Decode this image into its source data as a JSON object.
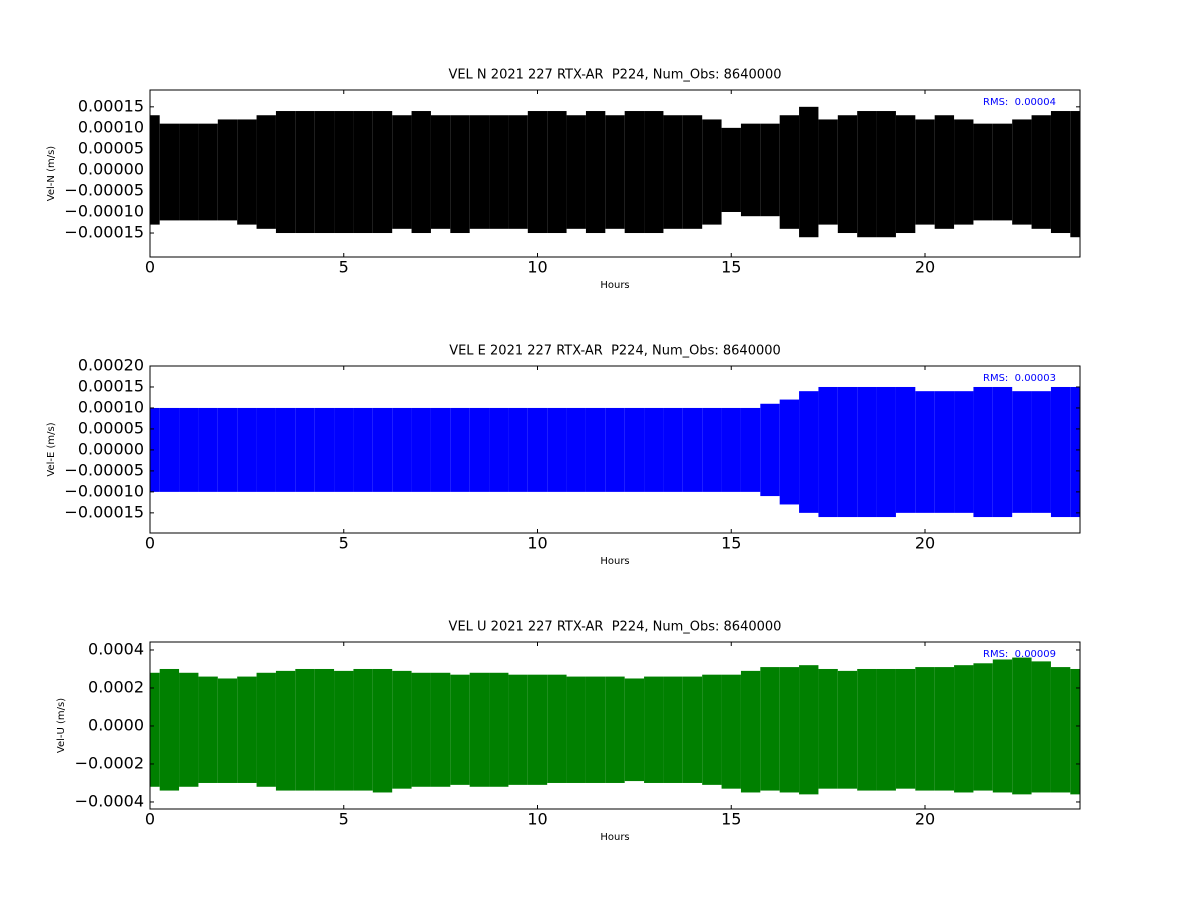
{
  "chart_data": [
    {
      "type": "range",
      "title": "VEL N 2021 227 RTX-AR  P224, Num_Obs: 8640000",
      "xlabel": "Hours",
      "ylabel": "Vel-N (m/s)",
      "annotation": "RMS:  0.00004",
      "annotation_color": "#0000ff",
      "color": "#000000",
      "x": [
        0,
        0.5,
        1,
        1.5,
        2,
        2.5,
        3,
        3.5,
        4,
        4.5,
        5,
        5.5,
        6,
        6.5,
        7,
        7.5,
        8,
        8.5,
        9,
        9.5,
        10,
        10.5,
        11,
        11.5,
        12,
        12.5,
        13,
        13.5,
        14,
        14.5,
        15,
        15.5,
        16,
        16.5,
        17,
        17.5,
        18,
        18.5,
        19,
        19.5,
        20,
        20.5,
        21,
        21.5,
        22,
        22.5,
        23,
        23.5,
        24
      ],
      "high": [
        0.00013,
        0.00011,
        0.00011,
        0.00011,
        0.00012,
        0.00012,
        0.00013,
        0.00014,
        0.00014,
        0.00014,
        0.00014,
        0.00014,
        0.00014,
        0.00013,
        0.00014,
        0.00013,
        0.00013,
        0.00013,
        0.00013,
        0.00013,
        0.00014,
        0.00014,
        0.00013,
        0.00014,
        0.00013,
        0.00014,
        0.00014,
        0.00013,
        0.00013,
        0.00012,
        0.0001,
        0.00011,
        0.00011,
        0.00013,
        0.00015,
        0.00012,
        0.00013,
        0.00014,
        0.00014,
        0.00013,
        0.00012,
        0.00013,
        0.00012,
        0.00011,
        0.00011,
        0.00012,
        0.00013,
        0.00014,
        0.00014
      ],
      "low": [
        -0.00013,
        -0.00012,
        -0.00012,
        -0.00012,
        -0.00012,
        -0.00013,
        -0.00014,
        -0.00015,
        -0.00015,
        -0.00015,
        -0.00015,
        -0.00015,
        -0.00015,
        -0.00014,
        -0.00015,
        -0.00014,
        -0.00015,
        -0.00014,
        -0.00014,
        -0.00014,
        -0.00015,
        -0.00015,
        -0.00014,
        -0.00015,
        -0.00014,
        -0.00015,
        -0.00015,
        -0.00014,
        -0.00014,
        -0.00013,
        -0.0001,
        -0.00011,
        -0.00011,
        -0.00014,
        -0.00016,
        -0.00013,
        -0.00015,
        -0.00016,
        -0.00016,
        -0.00015,
        -0.00013,
        -0.00014,
        -0.00013,
        -0.00012,
        -0.00012,
        -0.00013,
        -0.00014,
        -0.00015,
        -0.00016
      ],
      "xlim": [
        0,
        24
      ],
      "ylim": [
        -0.000207,
        0.00019
      ],
      "xticks": [
        0,
        5,
        10,
        15,
        20
      ],
      "yticks": [
        {
          "value": -0.00015,
          "label": "−0.00015"
        },
        {
          "value": -0.0001,
          "label": "−0.00010"
        },
        {
          "value": -5e-05,
          "label": "−0.00005"
        },
        {
          "value": 0,
          "label": "0.00000"
        },
        {
          "value": 5e-05,
          "label": "0.00005"
        },
        {
          "value": 0.0001,
          "label": "0.00010"
        },
        {
          "value": 0.00015,
          "label": "0.00015"
        }
      ]
    },
    {
      "type": "range",
      "title": "VEL E 2021 227 RTX-AR  P224, Num_Obs: 8640000",
      "xlabel": "Hours",
      "ylabel": "Vel-E (m/s)",
      "annotation": "RMS:  0.00003",
      "annotation_color": "#0000ff",
      "color": "#0000ff",
      "x": [
        0,
        0.5,
        1,
        1.5,
        2,
        2.5,
        3,
        3.5,
        4,
        4.5,
        5,
        5.5,
        6,
        6.5,
        7,
        7.5,
        8,
        8.5,
        9,
        9.5,
        10,
        10.5,
        11,
        11.5,
        12,
        12.5,
        13,
        13.5,
        14,
        14.5,
        15,
        15.5,
        16,
        16.5,
        17,
        17.5,
        18,
        18.5,
        19,
        19.5,
        20,
        20.5,
        21,
        21.5,
        22,
        22.5,
        23,
        23.5,
        24
      ],
      "high": [
        0.0001,
        0.0001,
        0.0001,
        0.0001,
        0.0001,
        0.0001,
        0.0001,
        0.0001,
        0.0001,
        0.0001,
        0.0001,
        0.0001,
        0.0001,
        0.0001,
        0.0001,
        0.0001,
        0.0001,
        0.0001,
        0.0001,
        0.0001,
        0.0001,
        0.0001,
        0.0001,
        0.0001,
        0.0001,
        0.0001,
        0.0001,
        0.0001,
        0.0001,
        0.0001,
        0.0001,
        0.0001,
        0.00011,
        0.00012,
        0.00014,
        0.00015,
        0.00015,
        0.00015,
        0.00015,
        0.00015,
        0.00014,
        0.00014,
        0.00014,
        0.00015,
        0.00015,
        0.00014,
        0.00014,
        0.00015,
        0.00015
      ],
      "low": [
        -0.0001,
        -0.0001,
        -0.0001,
        -0.0001,
        -0.0001,
        -0.0001,
        -0.0001,
        -0.0001,
        -0.0001,
        -0.0001,
        -0.0001,
        -0.0001,
        -0.0001,
        -0.0001,
        -0.0001,
        -0.0001,
        -0.0001,
        -0.0001,
        -0.0001,
        -0.0001,
        -0.0001,
        -0.0001,
        -0.0001,
        -0.0001,
        -0.0001,
        -0.0001,
        -0.0001,
        -0.0001,
        -0.0001,
        -0.0001,
        -0.0001,
        -0.0001,
        -0.00011,
        -0.00013,
        -0.00015,
        -0.00016,
        -0.00016,
        -0.00016,
        -0.00016,
        -0.00015,
        -0.00015,
        -0.00015,
        -0.00015,
        -0.00016,
        -0.00016,
        -0.00015,
        -0.00015,
        -0.00016,
        -0.00016
      ],
      "xlim": [
        0,
        24
      ],
      "ylim": [
        -0.000198,
        0.0002
      ],
      "xticks": [
        0,
        5,
        10,
        15,
        20
      ],
      "yticks": [
        {
          "value": -0.00015,
          "label": "−0.00015"
        },
        {
          "value": -0.0001,
          "label": "−0.00010"
        },
        {
          "value": -5e-05,
          "label": "−0.00005"
        },
        {
          "value": 0,
          "label": "0.00000"
        },
        {
          "value": 5e-05,
          "label": "0.00005"
        },
        {
          "value": 0.0001,
          "label": "0.00010"
        },
        {
          "value": 0.00015,
          "label": "0.00015"
        },
        {
          "value": 0.0002,
          "label": "0.00020"
        }
      ]
    },
    {
      "type": "range",
      "title": "VEL U 2021 227 RTX-AR  P224, Num_Obs: 8640000",
      "xlabel": "Hours",
      "ylabel": "Vel-U (m/s)",
      "annotation": "RMS:  0.00009",
      "annotation_color": "#0000ff",
      "color": "#008000",
      "x": [
        0,
        0.5,
        1,
        1.5,
        2,
        2.5,
        3,
        3.5,
        4,
        4.5,
        5,
        5.5,
        6,
        6.5,
        7,
        7.5,
        8,
        8.5,
        9,
        9.5,
        10,
        10.5,
        11,
        11.5,
        12,
        12.5,
        13,
        13.5,
        14,
        14.5,
        15,
        15.5,
        16,
        16.5,
        17,
        17.5,
        18,
        18.5,
        19,
        19.5,
        20,
        20.5,
        21,
        21.5,
        22,
        22.5,
        23,
        23.5,
        24
      ],
      "high": [
        0.00028,
        0.0003,
        0.00028,
        0.00026,
        0.00025,
        0.00026,
        0.00028,
        0.00029,
        0.0003,
        0.0003,
        0.00029,
        0.0003,
        0.0003,
        0.00029,
        0.00028,
        0.00028,
        0.00027,
        0.00028,
        0.00028,
        0.00027,
        0.00027,
        0.00027,
        0.00026,
        0.00026,
        0.00026,
        0.00025,
        0.00026,
        0.00026,
        0.00026,
        0.00027,
        0.00027,
        0.00029,
        0.00031,
        0.00031,
        0.00032,
        0.0003,
        0.00029,
        0.0003,
        0.0003,
        0.0003,
        0.00031,
        0.00031,
        0.00032,
        0.00033,
        0.00035,
        0.00036,
        0.00034,
        0.00031,
        0.0003
      ],
      "low": [
        -0.00032,
        -0.00034,
        -0.00032,
        -0.0003,
        -0.0003,
        -0.0003,
        -0.00032,
        -0.00034,
        -0.00034,
        -0.00034,
        -0.00034,
        -0.00034,
        -0.00035,
        -0.00033,
        -0.00032,
        -0.00032,
        -0.00031,
        -0.00032,
        -0.00032,
        -0.00031,
        -0.00031,
        -0.0003,
        -0.0003,
        -0.0003,
        -0.0003,
        -0.00029,
        -0.0003,
        -0.0003,
        -0.0003,
        -0.00031,
        -0.00033,
        -0.00035,
        -0.00034,
        -0.00035,
        -0.00036,
        -0.00033,
        -0.00033,
        -0.00034,
        -0.00034,
        -0.00033,
        -0.00034,
        -0.00034,
        -0.00035,
        -0.00034,
        -0.00035,
        -0.00036,
        -0.00035,
        -0.00035,
        -0.00036
      ],
      "xlim": [
        0,
        24
      ],
      "ylim": [
        -0.000437,
        0.000442
      ],
      "xticks": [
        0,
        5,
        10,
        15,
        20
      ],
      "yticks": [
        {
          "value": -0.0004,
          "label": "−0.0004"
        },
        {
          "value": -0.0002,
          "label": "−0.0002"
        },
        {
          "value": 0,
          "label": "0.0000"
        },
        {
          "value": 0.0002,
          "label": "0.0002"
        },
        {
          "value": 0.0004,
          "label": "0.0004"
        }
      ]
    }
  ]
}
